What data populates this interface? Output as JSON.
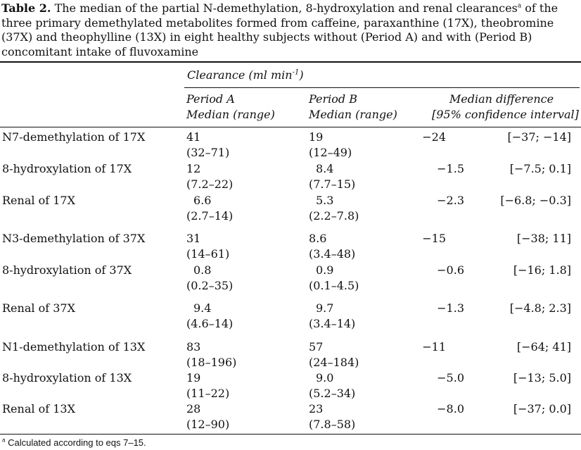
{
  "caption": {
    "label": "Table 2.",
    "text_a": "The median of the partial N-demethylation, 8-hydroxylation and renal clearances",
    "note_mark": "a",
    "text_b": "of the three primary demethylated metabolites formed from caffeine, paraxanthine (17X), theobromine (37X) and theophylline (13X) in eight healthy subjects without (Period A) and with (Period B) concomitant intake of fluvoxamine"
  },
  "header": {
    "clearance_prefix": "Clearance (ml min",
    "clearance_exp": "-1",
    "clearance_suffix": ")",
    "period_a_line1": "Period A",
    "period_a_line2": "Median (range)",
    "period_b_line1": "Period B",
    "period_b_line2": "Median (range)",
    "diff_line1": "Median difference",
    "diff_line2": "[95% confidence interval]"
  },
  "rows": [
    {
      "param": "N7-demethylation of 17X",
      "a_median": "41",
      "a_range": "(32–71)",
      "b_median": "19",
      "b_range": "(12–49)",
      "diff": "−24",
      "ci": "[−37; −14]"
    },
    {
      "param": "8-hydroxylation of 17X",
      "a_median": "12",
      "a_range": "(7.2–22)",
      "b_median": "8.4",
      "b_range": "(7.7–15)",
      "diff": "−1.5",
      "ci": "[−7.5; 0.1]"
    },
    {
      "param": "Renal of 17X",
      "a_median": "6.6",
      "a_range": "(2.7–14)",
      "b_median": "5.3",
      "b_range": "(2.2–7.8)",
      "diff": "−2.3",
      "ci": "[−6.8; −0.3]"
    },
    {
      "param": "N3-demethylation of 37X",
      "a_median": "31",
      "a_range": "(14–61)",
      "b_median": "8.6",
      "b_range": "(3.4–48)",
      "diff": "−15",
      "ci": "[−38; 11]"
    },
    {
      "param": "8-hydroxylation of 37X",
      "a_median": "0.8",
      "a_range": "(0.2–35)",
      "b_median": "0.9",
      "b_range": "(0.1–4.5)",
      "diff": "−0.6",
      "ci": "[−16; 1.8]"
    },
    {
      "param": "Renal of 37X",
      "a_median": "9.4",
      "a_range": "(4.6–14)",
      "b_median": "9.7",
      "b_range": "(3.4–14)",
      "diff": "−1.3",
      "ci": "[−4.8; 2.3]"
    },
    {
      "param": "N1-demethylation of 13X",
      "a_median": "83",
      "a_range": "(18–196)",
      "b_median": "57",
      "b_range": "(24–184)",
      "diff": "−11",
      "ci": "[−64; 41]"
    },
    {
      "param": "8-hydroxylation of 13X",
      "a_median": "19",
      "a_range": "(11–22)",
      "b_median": "9.0",
      "b_range": "(5.2–34)",
      "diff": "−5.0",
      "ci": "[−13; 5.0]"
    },
    {
      "param": "Renal of 13X",
      "a_median": "28",
      "a_range": "(12–90)",
      "b_median": "23",
      "b_range": "(7.8–58)",
      "diff": "−8.0",
      "ci": "[−37; 0.0]"
    }
  ],
  "footnote": {
    "mark": "a",
    "text": "Calculated according to eqs 7–15."
  }
}
